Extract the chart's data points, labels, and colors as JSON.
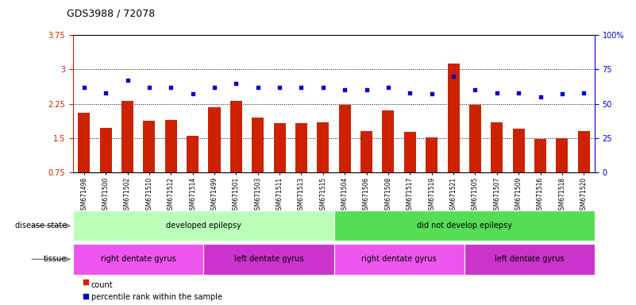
{
  "title": "GDS3988 / 72078",
  "samples": [
    "GSM671498",
    "GSM671500",
    "GSM671502",
    "GSM671510",
    "GSM671512",
    "GSM671514",
    "GSM671499",
    "GSM671501",
    "GSM671503",
    "GSM671511",
    "GSM671513",
    "GSM671515",
    "GSM671504",
    "GSM671506",
    "GSM671508",
    "GSM671517",
    "GSM671519",
    "GSM671521",
    "GSM671505",
    "GSM671507",
    "GSM671509",
    "GSM671516",
    "GSM671518",
    "GSM671520"
  ],
  "bar_values": [
    2.05,
    1.72,
    2.32,
    1.88,
    1.9,
    1.55,
    2.18,
    2.32,
    1.95,
    1.82,
    1.82,
    1.85,
    2.22,
    1.65,
    2.1,
    1.63,
    1.52,
    3.12,
    2.22,
    1.85,
    1.7,
    1.48,
    1.5,
    1.65
  ],
  "dot_values": [
    62,
    58,
    67,
    62,
    62,
    57,
    62,
    65,
    62,
    62,
    62,
    62,
    60,
    60,
    62,
    58,
    57,
    70,
    60,
    58,
    58,
    55,
    57,
    58
  ],
  "bar_color": "#cc2200",
  "dot_color": "#0000cc",
  "ylim_left": [
    0.75,
    3.75
  ],
  "ylim_right": [
    0,
    100
  ],
  "yticks_left": [
    0.75,
    1.5,
    2.25,
    3.0,
    3.75
  ],
  "ytick_labels_left": [
    "0.75",
    "1.5",
    "2.25",
    "3",
    "3.75"
  ],
  "yticks_right": [
    0,
    25,
    50,
    75,
    100
  ],
  "ytick_labels_right": [
    "0",
    "25",
    "50",
    "75",
    "100%"
  ],
  "hlines": [
    1.5,
    2.25,
    3.0
  ],
  "disease_state_groups": [
    {
      "label": "developed epilepsy",
      "start": 0,
      "end": 11,
      "color": "#bbffbb"
    },
    {
      "label": "did not develop epilepsy",
      "start": 12,
      "end": 23,
      "color": "#55dd55"
    }
  ],
  "tissue_groups": [
    {
      "label": "right dentate gyrus",
      "start": 0,
      "end": 5,
      "color": "#ee55ee"
    },
    {
      "label": "left dentate gyrus",
      "start": 6,
      "end": 11,
      "color": "#cc33cc"
    },
    {
      "label": "right dentate gyrus",
      "start": 12,
      "end": 17,
      "color": "#ee55ee"
    },
    {
      "label": "left dentate gyrus",
      "start": 18,
      "end": 23,
      "color": "#cc33cc"
    }
  ],
  "legend_count_color": "#cc2200",
  "legend_dot_color": "#0000cc",
  "background_color": "#ffffff"
}
